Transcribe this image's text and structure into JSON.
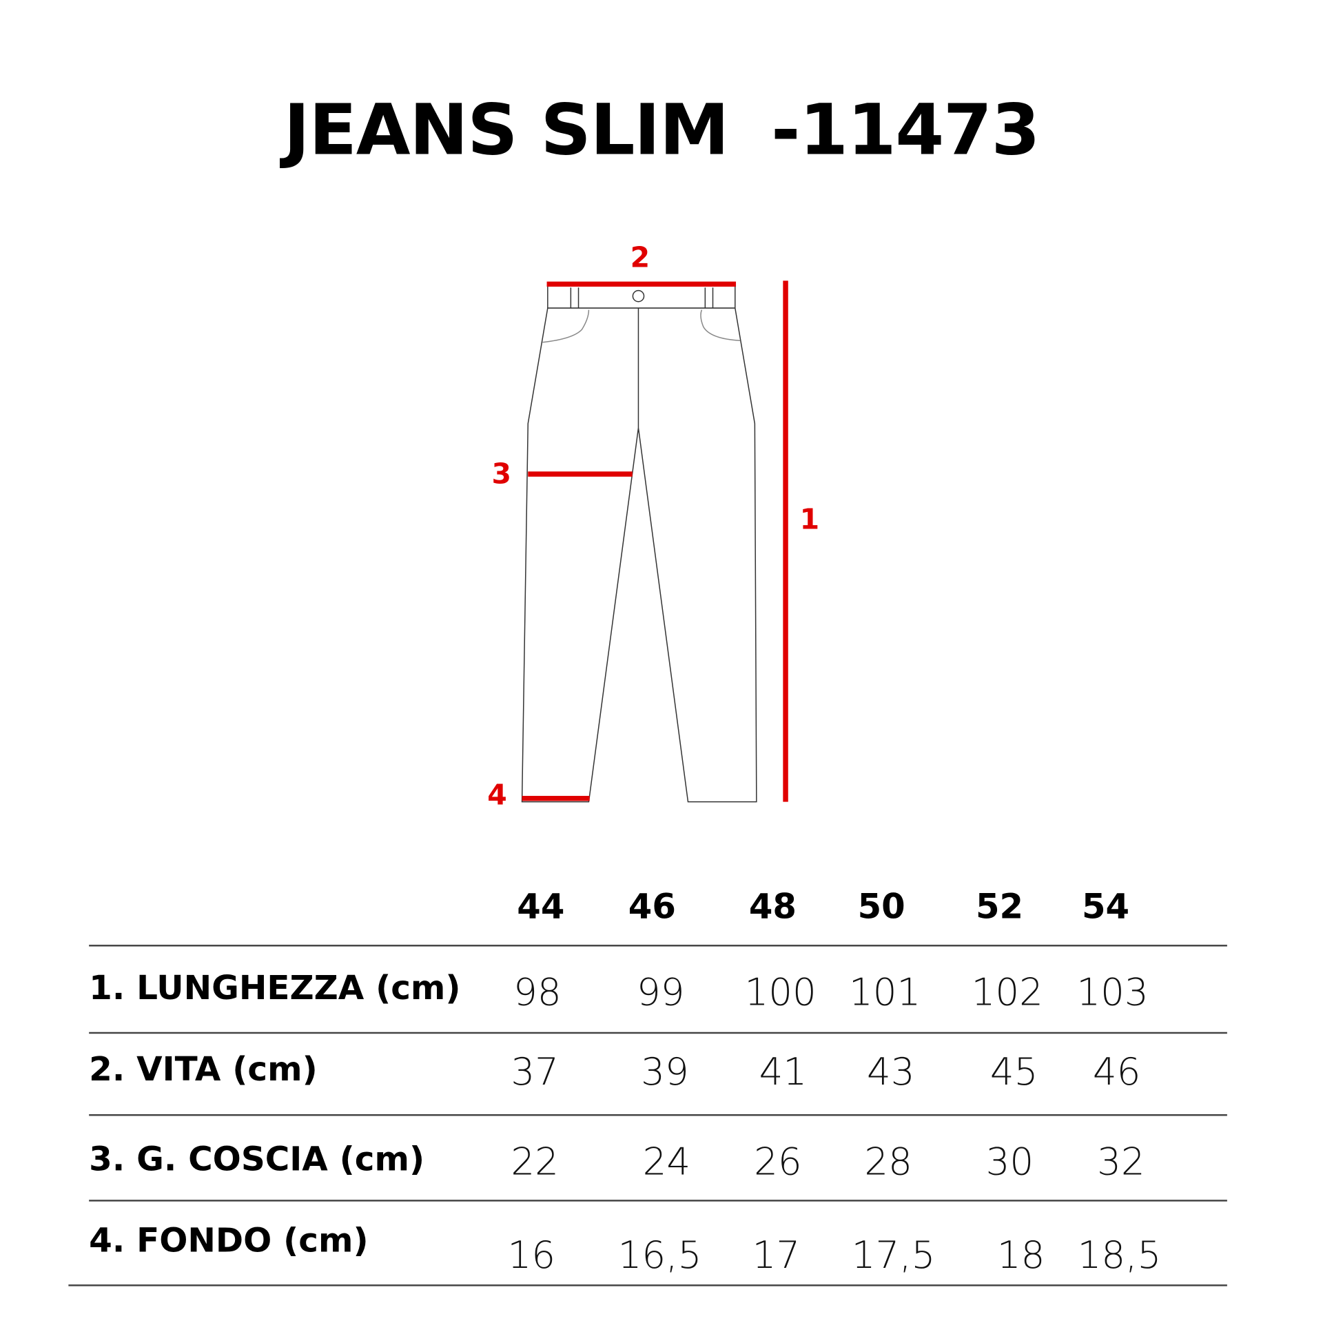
{
  "title": {
    "name": "JEANS SLIM",
    "code": "-11473"
  },
  "diagram": {
    "labels": {
      "length": "1",
      "waist": "2",
      "thigh": "3",
      "hem": "4"
    },
    "accent_color": "#e00000"
  },
  "table": {
    "sizes": [
      "44",
      "46",
      "48",
      "50",
      "52",
      "54"
    ],
    "rows": [
      {
        "label": "1. LUNGHEZZA (cm)",
        "values": [
          "98",
          "99",
          "100",
          "101",
          "102",
          "103"
        ]
      },
      {
        "label": "2. VITA (cm)",
        "values": [
          "37",
          "39",
          "41",
          "43",
          "45",
          "46"
        ]
      },
      {
        "label": "3. G. COSCIA (cm)",
        "values": [
          "22",
          "24",
          "26",
          "28",
          "30",
          "32"
        ]
      },
      {
        "label": "4. FONDO (cm)",
        "values": [
          "16",
          "16,5",
          "17",
          "17,5",
          "18",
          "18,5"
        ]
      }
    ]
  }
}
